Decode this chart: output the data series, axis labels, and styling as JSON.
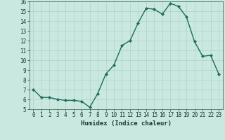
{
  "x": [
    0,
    1,
    2,
    3,
    4,
    5,
    6,
    7,
    8,
    9,
    10,
    11,
    12,
    13,
    14,
    15,
    16,
    17,
    18,
    19,
    20,
    21,
    22,
    23
  ],
  "y": [
    7.0,
    6.2,
    6.2,
    6.0,
    5.9,
    5.9,
    5.8,
    5.2,
    6.6,
    8.6,
    9.5,
    11.5,
    12.0,
    13.8,
    15.3,
    15.2,
    14.7,
    15.8,
    15.5,
    14.4,
    11.9,
    10.4,
    10.5,
    8.6
  ],
  "line_color": "#1f6b5a",
  "marker": "D",
  "marker_size": 2.0,
  "bg_color": "#c8e8e0",
  "grid_color": "#b0d0c8",
  "xlabel": "Humidex (Indice chaleur)",
  "ylim": [
    5,
    16
  ],
  "xlim_min": -0.5,
  "xlim_max": 23.5,
  "yticks": [
    5,
    6,
    7,
    8,
    9,
    10,
    11,
    12,
    13,
    14,
    15,
    16
  ],
  "xticks": [
    0,
    1,
    2,
    3,
    4,
    5,
    6,
    7,
    8,
    9,
    10,
    11,
    12,
    13,
    14,
    15,
    16,
    17,
    18,
    19,
    20,
    21,
    22,
    23
  ],
  "xtick_labels": [
    "0",
    "1",
    "2",
    "3",
    "4",
    "5",
    "6",
    "7",
    "8",
    "9",
    "10",
    "11",
    "12",
    "13",
    "14",
    "15",
    "16",
    "17",
    "18",
    "19",
    "20",
    "21",
    "22",
    "23"
  ],
  "tick_fontsize": 5.5,
  "xlabel_fontsize": 6.5,
  "line_width": 1.0
}
